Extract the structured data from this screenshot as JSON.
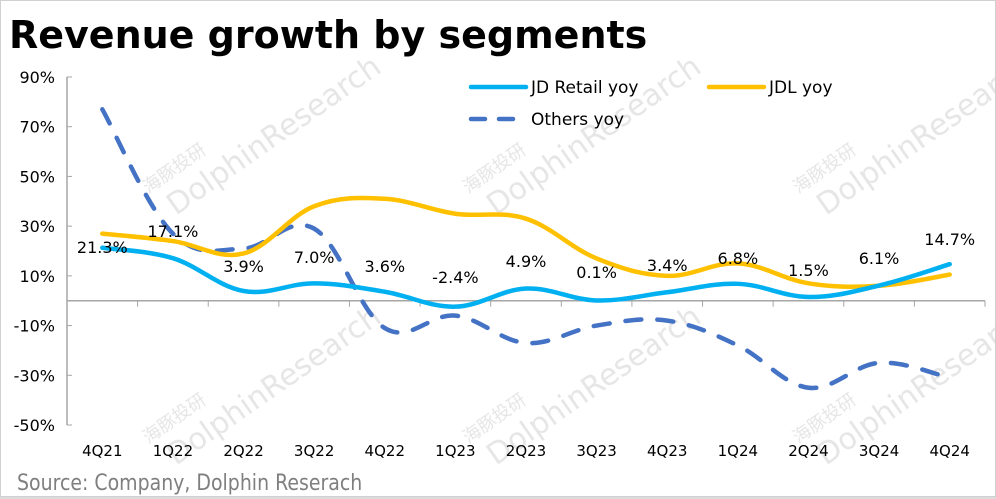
{
  "chart_data": {
    "type": "line",
    "title": "Revenue growth by segments",
    "source": "Source: Company, Dolphin Reserach",
    "xlabel": "",
    "ylabel": "",
    "ylim": [
      -50,
      90
    ],
    "yticks": [
      90,
      70,
      50,
      30,
      10,
      -10,
      -30,
      -50
    ],
    "ytick_labels": [
      "90%",
      "70%",
      "50%",
      "30%",
      "10%",
      "-10%",
      "-30%",
      "-50%"
    ],
    "grid": false,
    "legend_position": "top-right",
    "categories": [
      "4Q21",
      "1Q22",
      "2Q22",
      "3Q22",
      "4Q22",
      "1Q23",
      "2Q23",
      "3Q23",
      "4Q23",
      "1Q24",
      "2Q24",
      "3Q24",
      "4Q24"
    ],
    "series": [
      {
        "name": "JD Retail yoy",
        "color": "#00B0F0",
        "style": "solid",
        "values": [
          21.3,
          17.1,
          3.9,
          7.0,
          3.6,
          -2.4,
          4.9,
          0.1,
          3.4,
          6.8,
          1.5,
          6.1,
          14.7
        ],
        "data_labels": [
          "21.3%",
          "17.1%",
          "3.9%",
          "7.0%",
          "3.6%",
          "-2.4%",
          "4.9%",
          "0.1%",
          "3.4%",
          "6.8%",
          "1.5%",
          "6.1%",
          "14.7%"
        ]
      },
      {
        "name": "JDL yoy",
        "color": "#FFC000",
        "style": "solid",
        "values": [
          27,
          24,
          19,
          38,
          41,
          35,
          33,
          17,
          10,
          15,
          7,
          6,
          10.5
        ]
      },
      {
        "name": "Others yoy",
        "color": "#4472C4",
        "style": "dashed",
        "values": [
          77,
          27,
          21,
          29,
          -11,
          -6,
          -17,
          -10,
          -8,
          -18,
          -35,
          -25,
          -31
        ]
      }
    ]
  },
  "watermark": {
    "cn": "海豚投研",
    "en": "DolphinResearch"
  }
}
